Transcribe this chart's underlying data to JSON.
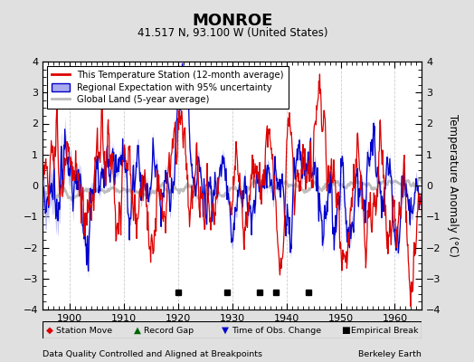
{
  "title": "MONROE",
  "subtitle": "41.517 N, 93.100 W (United States)",
  "ylabel": "Temperature Anomaly (°C)",
  "xlim": [
    1895,
    1965
  ],
  "ylim": [
    -4,
    4
  ],
  "yticks": [
    -4,
    -3,
    -2,
    -1,
    0,
    1,
    2,
    3,
    4
  ],
  "xticks": [
    1900,
    1910,
    1920,
    1930,
    1940,
    1950,
    1960
  ],
  "background_color": "#e0e0e0",
  "plot_bg_color": "#ffffff",
  "red_color": "#dd0000",
  "blue_color": "#0000cc",
  "blue_fill_color": "#aaaaee",
  "gray_color": "#bbbbbb",
  "footer_left": "Data Quality Controlled and Aligned at Breakpoints",
  "footer_right": "Berkeley Earth",
  "empirical_breaks": [
    1920,
    1929,
    1935,
    1938,
    1944
  ],
  "seed": 42
}
